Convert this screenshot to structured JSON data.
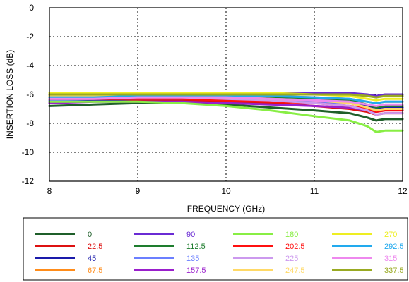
{
  "chart_data": {
    "type": "line",
    "title": "",
    "xlabel": "FREQUENCY (GHz)",
    "ylabel": "INSERTION LOSS  (dB)",
    "xlim": [
      8,
      12
    ],
    "ylim": [
      -12,
      0
    ],
    "xticks": [
      "8",
      "9",
      "10",
      "11",
      "12"
    ],
    "yticks": [
      "0",
      "-2",
      "-4",
      "-6",
      "-8",
      "-10",
      "-12"
    ],
    "grid": "dotted",
    "legend_position": "bottom",
    "x": [
      8.0,
      8.5,
      9.0,
      9.5,
      10.0,
      10.5,
      11.0,
      11.4,
      11.6,
      11.7,
      11.8,
      12.0
    ],
    "series": [
      {
        "name": "0",
        "color": "#1f5f2a",
        "values": [
          -6.8,
          -6.7,
          -6.6,
          -6.6,
          -6.7,
          -6.9,
          -7.1,
          -7.3,
          -7.6,
          -7.8,
          -7.7,
          -7.7
        ]
      },
      {
        "name": "22.5",
        "color": "#dd1111",
        "values": [
          -6.4,
          -6.4,
          -6.4,
          -6.4,
          -6.5,
          -6.6,
          -6.8,
          -7.0,
          -7.2,
          -7.4,
          -7.3,
          -7.3
        ]
      },
      {
        "name": "45",
        "color": "#1a1aaa",
        "values": [
          -6.5,
          -6.4,
          -6.3,
          -6.3,
          -6.3,
          -6.4,
          -6.5,
          -6.6,
          -6.8,
          -6.9,
          -6.9,
          -6.9
        ]
      },
      {
        "name": "67.5",
        "color": "#ff8c1a",
        "values": [
          -6.2,
          -6.1,
          -6.1,
          -6.0,
          -6.1,
          -6.1,
          -6.2,
          -6.3,
          -6.5,
          -6.6,
          -6.5,
          -6.5
        ]
      },
      {
        "name": "90",
        "color": "#6a2bd4",
        "values": [
          -6.0,
          -6.0,
          -6.0,
          -5.9,
          -5.9,
          -5.9,
          -5.9,
          -5.9,
          -6.0,
          -6.1,
          -6.0,
          -6.0
        ]
      },
      {
        "name": "112.5",
        "color": "#1e7d2e",
        "values": [
          -6.1,
          -6.1,
          -6.1,
          -6.1,
          -6.1,
          -6.2,
          -6.3,
          -6.4,
          -6.7,
          -6.9,
          -6.8,
          -6.8
        ]
      },
      {
        "name": "135",
        "color": "#6b7fff",
        "values": [
          -6.4,
          -6.3,
          -6.3,
          -6.3,
          -6.3,
          -6.4,
          -6.5,
          -6.6,
          -6.9,
          -7.1,
          -7.0,
          -7.0
        ]
      },
      {
        "name": "157.5",
        "color": "#9a1fcc",
        "values": [
          -6.6,
          -6.5,
          -6.5,
          -6.5,
          -6.6,
          -6.7,
          -6.8,
          -6.9,
          -7.1,
          -7.2,
          -7.1,
          -7.1
        ]
      },
      {
        "name": "180",
        "color": "#88ee44",
        "values": [
          -6.5,
          -6.5,
          -6.5,
          -6.6,
          -6.8,
          -7.1,
          -7.5,
          -7.8,
          -8.2,
          -8.6,
          -8.5,
          -8.5
        ]
      },
      {
        "name": "202.5",
        "color": "#ff1010",
        "values": [
          -6.3,
          -6.3,
          -6.3,
          -6.3,
          -6.4,
          -6.5,
          -6.6,
          -6.8,
          -7.0,
          -7.2,
          -7.1,
          -7.1
        ]
      },
      {
        "name": "225",
        "color": "#cc99ee",
        "values": [
          -6.2,
          -6.2,
          -6.2,
          -6.2,
          -6.3,
          -6.4,
          -6.6,
          -6.8,
          -7.1,
          -7.4,
          -7.3,
          -7.3
        ]
      },
      {
        "name": "247.5",
        "color": "#ffd966",
        "values": [
          -6.1,
          -6.1,
          -6.1,
          -6.1,
          -6.2,
          -6.3,
          -6.4,
          -6.6,
          -6.9,
          -7.1,
          -7.0,
          -7.0
        ]
      },
      {
        "name": "270",
        "color": "#eeee22",
        "values": [
          -5.9,
          -5.9,
          -5.9,
          -5.9,
          -5.9,
          -5.9,
          -6.0,
          -6.1,
          -6.3,
          -6.4,
          -6.3,
          -6.3
        ]
      },
      {
        "name": "292.5",
        "color": "#22aaee",
        "values": [
          -6.2,
          -6.2,
          -6.1,
          -6.1,
          -6.1,
          -6.1,
          -6.2,
          -6.3,
          -6.5,
          -6.6,
          -6.5,
          -6.5
        ]
      },
      {
        "name": "315",
        "color": "#ee88ee",
        "values": [
          -6.3,
          -6.3,
          -6.2,
          -6.2,
          -6.2,
          -6.3,
          -6.4,
          -6.5,
          -6.7,
          -6.8,
          -6.7,
          -6.7
        ]
      },
      {
        "name": "337.5",
        "color": "#99aa22",
        "values": [
          -6.0,
          -6.0,
          -6.0,
          -6.0,
          -6.0,
          -6.0,
          -6.0,
          -6.0,
          -6.1,
          -6.2,
          -6.1,
          -6.1
        ]
      }
    ]
  }
}
